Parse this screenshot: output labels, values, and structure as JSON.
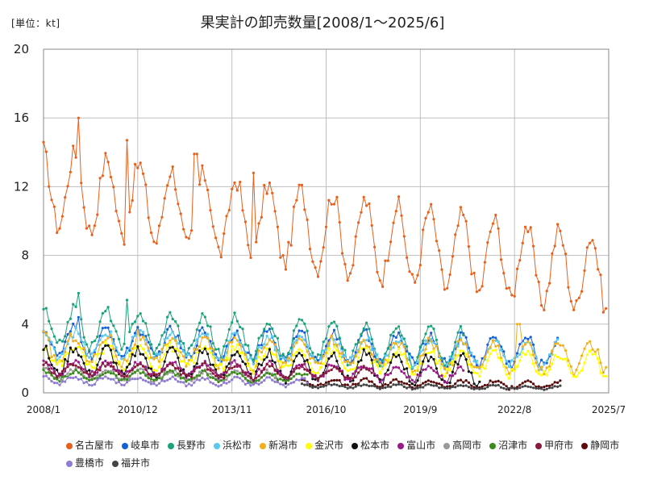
{
  "chart_data": {
    "type": "line",
    "title": "果実計の卸売数量[2008/1～2025/6]",
    "unit_label": "[単位：kt]",
    "x_ticks": [
      "2008/1",
      "2010/12",
      "2013/11",
      "2016/10",
      "2019/9",
      "2022/8",
      "2025/7"
    ],
    "y_ticks": [
      "0",
      "4",
      "8",
      "12",
      "16",
      "20"
    ],
    "ylim": [
      0,
      20
    ],
    "grid": true,
    "legend_position": "bottom",
    "series": [
      {
        "name": "名古屋市",
        "color": "#e8601c",
        "start": 2008.0,
        "end": 2025.45,
        "base_start": 12.0,
        "base_end": 6.8,
        "amp": 2.2,
        "noise": 0.6,
        "peaks": [
          [
            2009.1,
            16.0
          ],
          [
            2010.6,
            14.7
          ],
          [
            2012.7,
            13.9
          ],
          [
            2014.5,
            12.8
          ]
        ]
      },
      {
        "name": "岐阜市",
        "color": "#1560d6",
        "start": 2008.0,
        "end": 2023.9,
        "base_start": 3.0,
        "base_end": 2.4,
        "amp": 0.8,
        "noise": 0.3,
        "peaks": [
          [
            2009.1,
            4.4
          ]
        ]
      },
      {
        "name": "長野市",
        "color": "#1aa37a",
        "start": 2008.0,
        "end": 2021.0,
        "base_start": 3.9,
        "base_end": 2.6,
        "amp": 1.1,
        "noise": 0.3,
        "peaks": [
          [
            2009.1,
            5.8
          ],
          [
            2010.6,
            5.4
          ]
        ]
      },
      {
        "name": "浜松市",
        "color": "#5bc8f0",
        "start": 2008.0,
        "end": 2023.9,
        "base_start": 2.9,
        "base_end": 2.2,
        "amp": 0.7,
        "noise": 0.3,
        "peaks": []
      },
      {
        "name": "新潟市",
        "color": "#f0b020",
        "start": 2008.0,
        "end": 2025.45,
        "base_start": 2.6,
        "base_end": 2.0,
        "amp": 0.8,
        "noise": 0.35,
        "peaks": [
          [
            2022.7,
            4.0
          ]
        ]
      },
      {
        "name": "金沢市",
        "color": "#ffff00",
        "start": 2008.0,
        "end": 2025.45,
        "base_start": 2.2,
        "base_end": 1.6,
        "amp": 0.6,
        "noise": 0.3,
        "peaks": []
      },
      {
        "name": "松本市",
        "color": "#111111",
        "start": 2008.0,
        "end": 2021.5,
        "base_start": 1.9,
        "base_end": 1.3,
        "amp": 0.8,
        "noise": 0.3,
        "peaks": []
      },
      {
        "name": "富山市",
        "color": "#9b1a8a",
        "start": 2008.0,
        "end": 2021.0,
        "base_start": 1.5,
        "base_end": 1.1,
        "amp": 0.4,
        "noise": 0.2,
        "peaks": []
      },
      {
        "name": "高岡市",
        "color": "#999999",
        "start": 2008.0,
        "end": 2015.3,
        "base_start": 1.1,
        "base_end": 0.9,
        "amp": 0.3,
        "noise": 0.15,
        "peaks": []
      },
      {
        "name": "沼津市",
        "color": "#3a8c1a",
        "start": 2008.0,
        "end": 2016.2,
        "base_start": 1.0,
        "base_end": 0.9,
        "amp": 0.25,
        "noise": 0.12,
        "peaks": []
      },
      {
        "name": "甲府市",
        "color": "#8a1a3a",
        "start": 2008.0,
        "end": 2018.2,
        "base_start": 1.4,
        "base_end": 1.1,
        "amp": 0.35,
        "noise": 0.15,
        "peaks": []
      },
      {
        "name": "静岡市",
        "color": "#5a0a0a",
        "start": 2016.0,
        "end": 2024.0,
        "base_start": 0.6,
        "base_end": 0.45,
        "amp": 0.2,
        "noise": 0.1,
        "peaks": []
      },
      {
        "name": "豊橋市",
        "color": "#8f7bd0",
        "start": 2008.0,
        "end": 2016.2,
        "base_start": 0.75,
        "base_end": 0.6,
        "amp": 0.2,
        "noise": 0.1,
        "peaks": []
      },
      {
        "name": "福井市",
        "color": "#444444",
        "start": 2016.0,
        "end": 2024.0,
        "base_start": 0.4,
        "base_end": 0.3,
        "amp": 0.1,
        "noise": 0.06,
        "peaks": []
      }
    ]
  }
}
